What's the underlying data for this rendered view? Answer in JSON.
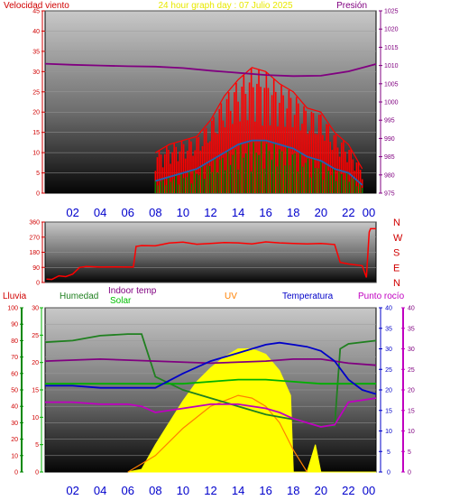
{
  "title": "24 hour graph day : 07 Julio 2025",
  "x_hour_labels": [
    "02",
    "04",
    "06",
    "08",
    "10",
    "12",
    "14",
    "16",
    "18",
    "20",
    "22",
    "00"
  ],
  "colors": {
    "wind_avg": "#1e63b4",
    "wind_gust": "#ff0000",
    "wind_green": "#008800",
    "pressure": "#800080",
    "direction": "#ff0000",
    "rain": "#008800",
    "humidity": "#208020",
    "indoor_temp": "#800080",
    "solar": "#ffff00",
    "uv": "#ff8000",
    "temperature": "#0000c8",
    "dewpoint": "#c000c0",
    "outdoor_green": "#00b000"
  },
  "chart_data": [
    {
      "type": "area",
      "title": "24 hour graph day : 07 Julio 2025",
      "left_axis_label": "Velocidad viento",
      "right_axis_label": "Presión",
      "left_ticks": [
        "0",
        "5",
        "10",
        "15",
        "20",
        "25",
        "30",
        "35",
        "40",
        "45"
      ],
      "right_ticks": [
        "975",
        "980",
        "985",
        "990",
        "995",
        "1000",
        "1005",
        "1010",
        "1015",
        "1020",
        "1025"
      ],
      "left_range": [
        0,
        45
      ],
      "right_range": [
        975,
        1025
      ],
      "series": [
        {
          "key": "pressure",
          "axis": "right",
          "x": [
            0,
            2,
            4,
            6,
            8,
            10,
            12,
            14,
            16,
            18,
            20,
            22,
            24
          ],
          "y": [
            1010.5,
            1010.2,
            1010.0,
            1009.8,
            1009.7,
            1009.3,
            1008.6,
            1008.0,
            1007.4,
            1007.1,
            1007.2,
            1008.4,
            1010.4
          ]
        },
        {
          "key": "wind_gust",
          "axis": "left",
          "x": [
            8.0,
            9,
            10,
            11,
            12,
            13,
            14,
            15,
            16,
            17,
            18,
            19,
            20,
            21,
            22,
            23.0
          ],
          "y": [
            10,
            12,
            13,
            14,
            18,
            24,
            28,
            31,
            30,
            27,
            25,
            21,
            20,
            15,
            12,
            6
          ]
        },
        {
          "key": "wind_avg",
          "axis": "left",
          "x": [
            8.0,
            9,
            10,
            11,
            12,
            13,
            14,
            15,
            16,
            17,
            18,
            19,
            20,
            21,
            22,
            23.0
          ],
          "y": [
            3,
            4,
            5,
            6,
            8,
            10,
            12,
            13,
            13,
            12,
            11,
            9,
            8,
            6,
            5,
            2
          ]
        }
      ]
    },
    {
      "type": "line",
      "right_labels": [
        "N",
        "W",
        "S",
        "E",
        "N"
      ],
      "left_ticks": [
        "0",
        "90",
        "180",
        "270",
        "360"
      ],
      "range": [
        0,
        360
      ],
      "series": [
        {
          "key": "direction",
          "x": [
            0.1,
            0.5,
            1.0,
            1.5,
            2.0,
            2.5,
            3.0,
            4.0,
            5.0,
            6.0,
            6.4,
            6.6,
            7.0,
            8.0,
            9.0,
            10.0,
            11.0,
            12.0,
            13.0,
            14.0,
            15.0,
            16.0,
            17.0,
            18.0,
            19.0,
            20.0,
            21.0,
            21.4,
            22.0,
            23.0,
            23.3,
            23.5,
            23.6,
            24.0
          ],
          "y": [
            20,
            18,
            40,
            35,
            50,
            90,
            95,
            92,
            93,
            92,
            92,
            215,
            220,
            218,
            235,
            240,
            228,
            232,
            238,
            236,
            230,
            242,
            236,
            232,
            230,
            232,
            226,
            120,
            110,
            100,
            30,
            300,
            320,
            320
          ]
        }
      ]
    },
    {
      "type": "area",
      "legend": [
        "Lluvia",
        "Humedad",
        "Indoor temp",
        "Solar",
        "UV",
        "Temperatura",
        "Punto rocío"
      ],
      "rain_ticks": [
        "0",
        "10",
        "20",
        "30",
        "40",
        "50",
        "60",
        "70",
        "80",
        "90",
        "100"
      ],
      "solar_ticks": [
        "0",
        "5",
        "10",
        "15",
        "20",
        "25",
        "30"
      ],
      "temp_ticks": [
        "0",
        "5",
        "10",
        "15",
        "20",
        "25",
        "30",
        "35",
        "40"
      ],
      "series": [
        {
          "key": "humidity",
          "scale": "pct100",
          "x": [
            0,
            2,
            4,
            6,
            7,
            8,
            10,
            12,
            14,
            16,
            18,
            20,
            21.0,
            21.4,
            22,
            24
          ],
          "y": [
            79,
            80,
            83,
            84,
            84,
            58,
            50,
            45,
            40,
            35,
            32,
            28,
            28,
            75,
            78,
            80
          ]
        },
        {
          "key": "indoor_temp",
          "scale": "t40",
          "x": [
            0,
            4,
            8,
            12,
            16,
            18,
            20,
            22,
            24
          ],
          "y": [
            27,
            27.5,
            27,
            26.5,
            27,
            27.5,
            27.5,
            26.5,
            26
          ]
        },
        {
          "key": "outdoor_green",
          "scale": "t40",
          "x": [
            0,
            4,
            8,
            10,
            12,
            14,
            16,
            18,
            20,
            22,
            24
          ],
          "y": [
            21.5,
            21.5,
            21.5,
            21.5,
            22,
            22.5,
            22.5,
            22,
            21.5,
            21.5,
            21.5
          ]
        },
        {
          "key": "temperature",
          "scale": "t40",
          "x": [
            0,
            2,
            4,
            6,
            7,
            8,
            10,
            12,
            14,
            16,
            17,
            18,
            19,
            20,
            21,
            22,
            23,
            24
          ],
          "y": [
            21,
            21,
            20.5,
            20.5,
            20.5,
            20.5,
            24,
            27,
            29,
            31,
            31.5,
            31,
            30.5,
            29.5,
            27,
            22.5,
            20,
            19
          ]
        },
        {
          "key": "dewpoint",
          "scale": "t40",
          "x": [
            0,
            2,
            4,
            6,
            7,
            8,
            10,
            12,
            14,
            16,
            17,
            18,
            20,
            21,
            22,
            24
          ],
          "y": [
            17,
            17,
            16.5,
            16.5,
            16,
            14.5,
            15.5,
            16.5,
            16.5,
            15.5,
            14.5,
            13,
            11,
            11.5,
            17,
            18
          ]
        },
        {
          "key": "solar",
          "scale": "s30",
          "x": [
            6.0,
            7,
            8,
            9,
            10,
            11,
            12,
            13,
            14,
            15,
            16,
            17,
            17.8,
            18.0,
            19.0,
            19.6,
            20,
            24
          ],
          "y": [
            0,
            0.5,
            5,
            9,
            13,
            16.5,
            19,
            21,
            22.5,
            22.5,
            21.5,
            18.5,
            14,
            0,
            0,
            5,
            0,
            0
          ]
        },
        {
          "key": "uv",
          "scale": "s30",
          "x": [
            6.0,
            8,
            10,
            12,
            14,
            15,
            16,
            17,
            18,
            19
          ],
          "y": [
            0,
            3,
            8,
            12,
            14,
            13.5,
            12,
            9,
            4,
            0
          ]
        }
      ]
    }
  ]
}
